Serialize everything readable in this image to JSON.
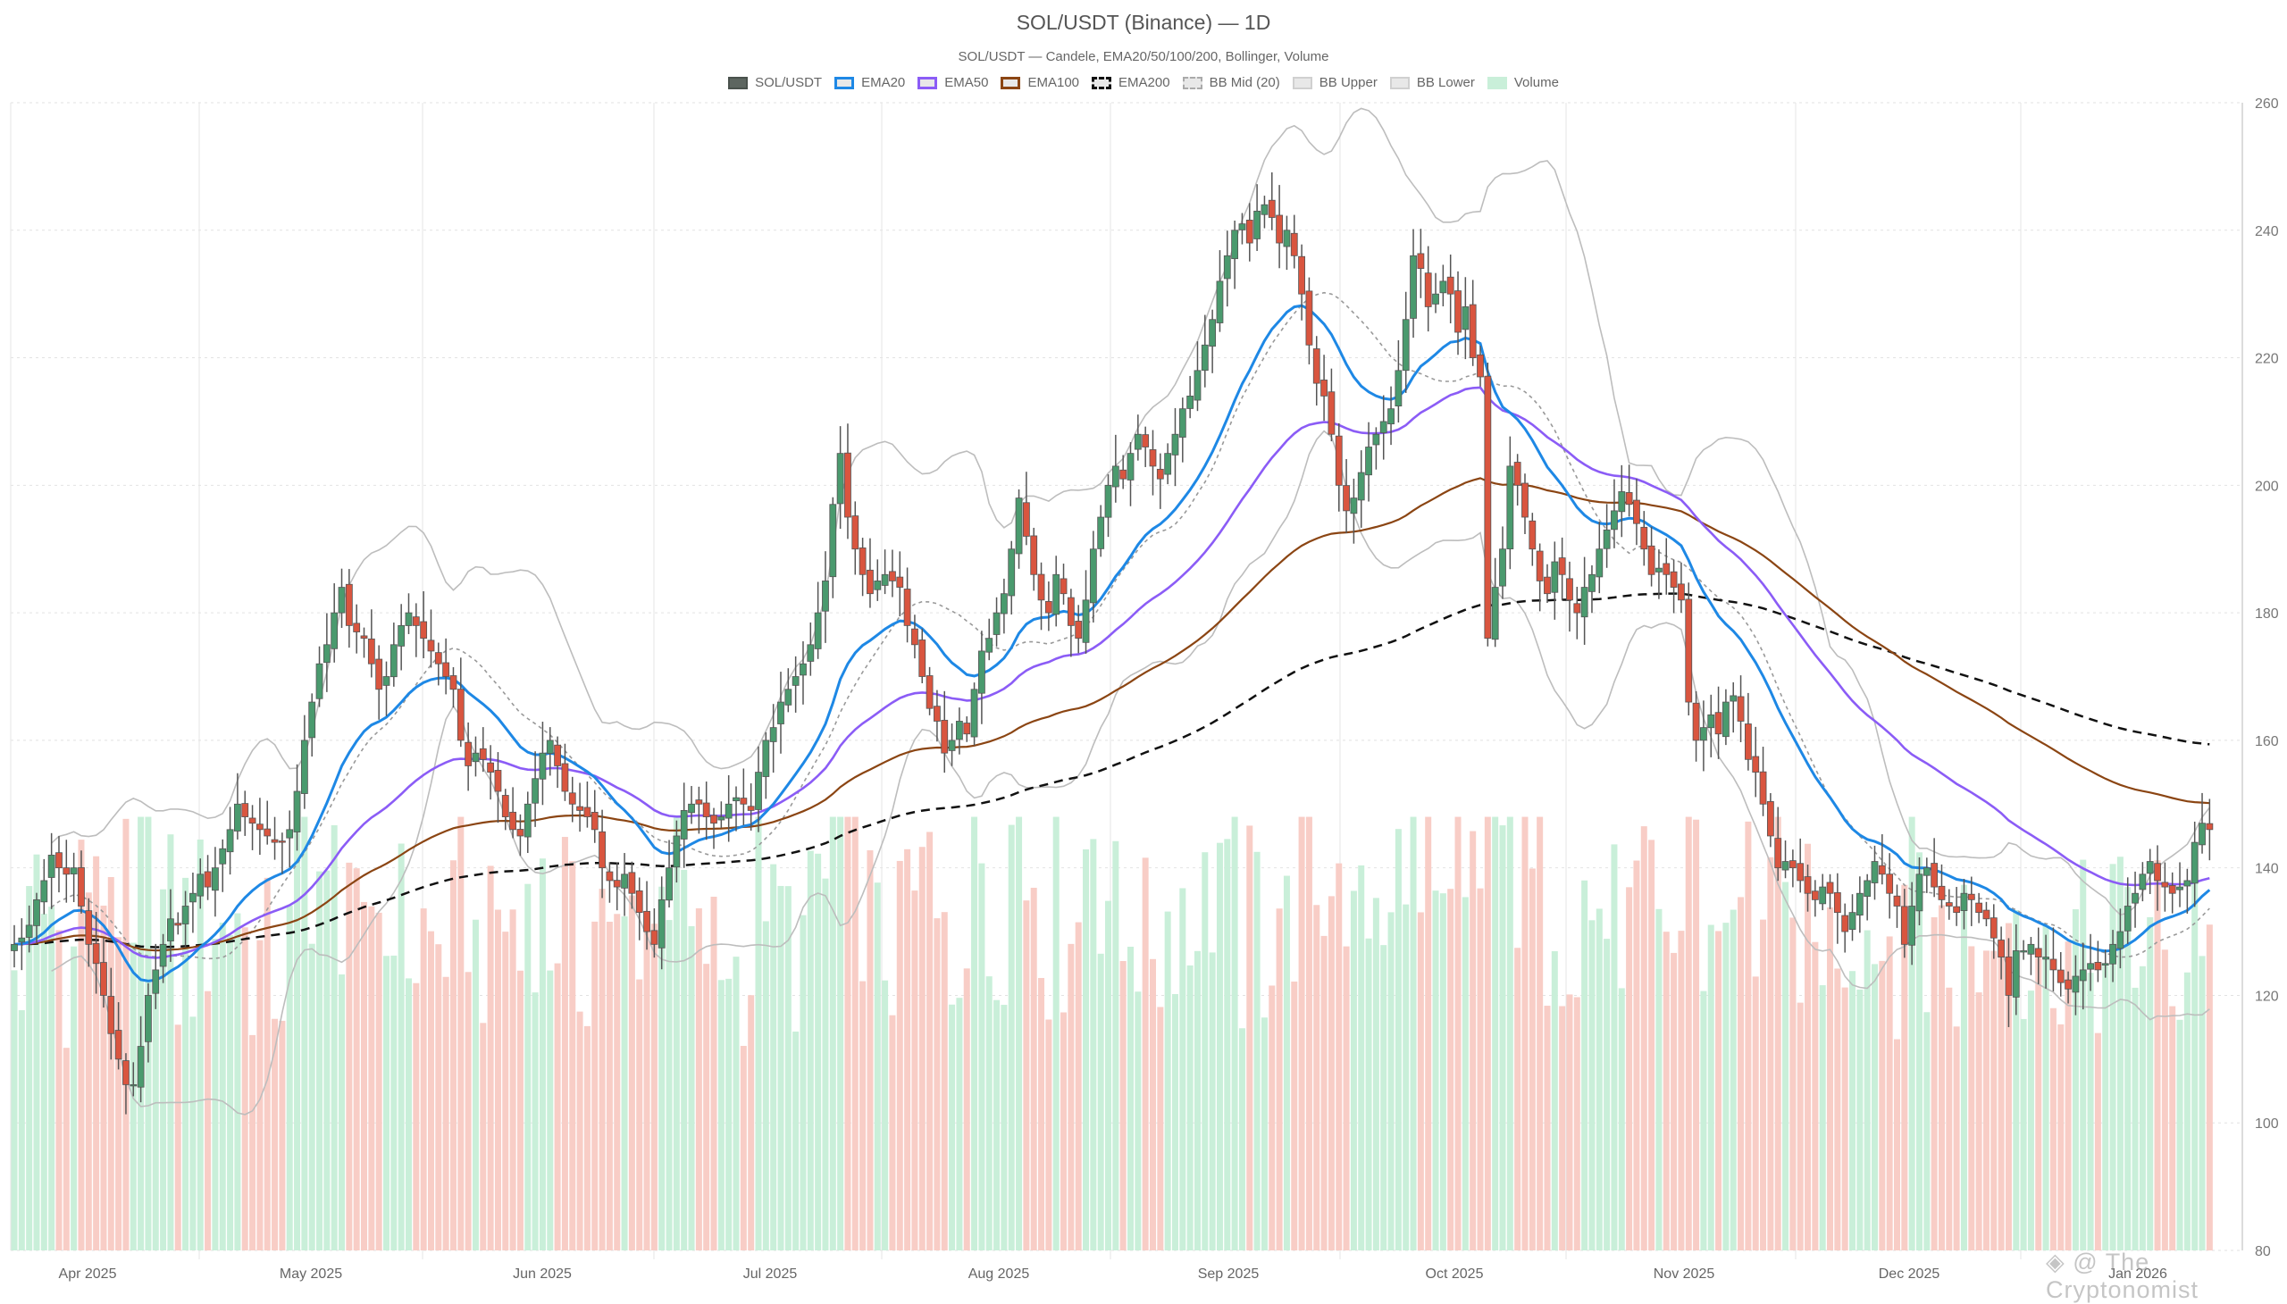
{
  "chart_data": {
    "type": "candlestick",
    "title": "SOL/USDT (Binance) — 1D",
    "subtitle": "SOL/USDT — Candele, EMA20/50/100/200, Bollinger, Volume",
    "xlabel": "",
    "ylabel": "",
    "ylim": [
      80,
      260
    ],
    "yticks": [
      80,
      100,
      120,
      140,
      160,
      180,
      200,
      220,
      240,
      260
    ],
    "y_axis_position": "right",
    "grid": true,
    "legend_position": "top",
    "x_tick_labels": [
      "Apr 2025",
      "May 2025",
      "Jun 2025",
      "Jul 2025",
      "Aug 2025",
      "Sep 2025",
      "Oct 2025",
      "Nov 2025",
      "Dec 2025",
      "Jan 2026"
    ],
    "start_date": "2025-03-22",
    "series_info": [
      {
        "name": "SOL/USDT",
        "color": "#4a9a6e",
        "kind": "candles"
      },
      {
        "name": "EMA20",
        "color": "#1e88e5",
        "kind": "line",
        "period": 20
      },
      {
        "name": "EMA50",
        "color": "#8b5cf6",
        "kind": "line",
        "period": 50
      },
      {
        "name": "EMA100",
        "color": "#8b4513",
        "kind": "line",
        "period": 100
      },
      {
        "name": "EMA200",
        "color": "#111111",
        "kind": "dashed",
        "period": 200
      },
      {
        "name": "BB Mid (20)",
        "color": "#999999",
        "kind": "dotted"
      },
      {
        "name": "BB Upper",
        "color": "#bbbbbb",
        "kind": "line"
      },
      {
        "name": "BB Lower",
        "color": "#bbbbbb",
        "kind": "line"
      },
      {
        "name": "Volume",
        "color": "#c9efd9",
        "kind": "bars"
      }
    ],
    "closes": [
      128,
      129,
      131,
      135,
      138,
      142,
      140,
      139,
      140,
      134,
      128,
      125,
      120,
      114,
      110,
      106,
      106,
      112,
      120,
      124,
      128,
      132,
      131,
      134,
      136,
      139,
      137,
      140,
      143,
      146,
      150,
      148,
      147,
      146,
      145,
      144,
      144,
      146,
      152,
      160,
      166,
      172,
      175,
      180,
      184,
      178,
      177,
      176,
      172,
      168,
      170,
      175,
      178,
      180,
      178,
      176,
      174,
      172,
      170,
      168,
      160,
      156,
      158,
      157,
      155,
      152,
      148,
      146,
      145,
      150,
      154,
      158,
      160,
      156,
      152,
      150,
      149,
      148,
      146,
      140,
      138,
      137,
      139,
      136,
      133,
      130,
      128,
      135,
      140,
      145,
      149,
      150,
      150,
      148,
      147,
      148,
      150,
      151,
      150,
      149,
      155,
      160,
      162,
      166,
      168,
      170,
      172,
      175,
      180,
      185,
      197,
      205,
      195,
      190,
      186,
      183,
      185,
      186,
      185,
      184,
      178,
      175,
      170,
      165,
      163,
      158,
      160,
      163,
      161,
      168,
      174,
      176,
      180,
      183,
      190,
      198,
      192,
      186,
      182,
      180,
      186,
      183,
      178,
      176,
      182,
      190,
      195,
      200,
      203,
      201,
      205,
      208,
      206,
      203,
      201,
      205,
      208,
      212,
      214,
      218,
      222,
      226,
      232,
      236,
      240,
      241,
      238,
      243,
      244,
      242,
      238,
      240,
      236,
      230,
      222,
      216,
      214,
      208,
      200,
      196,
      198,
      202,
      206,
      208,
      210,
      212,
      218,
      226,
      236,
      234,
      228,
      230,
      232,
      230,
      224,
      228,
      220,
      217,
      176,
      184,
      190,
      203,
      200,
      195,
      190,
      185,
      183,
      188,
      186,
      182,
      180,
      184,
      186,
      190,
      193,
      196,
      199,
      197,
      194,
      190,
      186,
      187,
      186,
      184,
      182,
      166,
      160,
      162,
      164,
      161,
      166,
      167,
      163,
      157,
      155,
      150,
      145,
      140,
      141,
      140,
      138,
      136,
      135,
      137,
      136,
      133,
      130,
      133,
      136,
      138,
      141,
      139,
      136,
      134,
      128,
      134,
      139,
      140,
      137,
      135,
      134,
      133,
      136,
      135,
      133,
      132,
      129,
      126,
      120,
      127,
      127,
      128,
      126,
      126,
      124,
      122,
      121,
      123,
      124,
      125,
      124,
      125,
      128,
      130,
      134,
      136,
      139,
      141,
      138,
      137,
      136,
      137,
      138,
      144,
      147,
      146
    ]
  },
  "header": {
    "title": "SOL/USDT (Binance) — 1D",
    "subtitle": "SOL/USDT — Candele, EMA20/50/100/200, Bollinger, Volume"
  },
  "legend": [
    {
      "label": "SOL/USDT"
    },
    {
      "label": "EMA20"
    },
    {
      "label": "EMA50"
    },
    {
      "label": "EMA100"
    },
    {
      "label": "EMA200"
    },
    {
      "label": "BB Mid (20)"
    },
    {
      "label": "BB Upper"
    },
    {
      "label": "BB Lower"
    },
    {
      "label": "Volume"
    }
  ],
  "colors": {
    "up": "#4a9a6e",
    "down": "#d9553f",
    "wick": "#555555",
    "vol_up": "#c9efd9",
    "vol_down": "#f8cdc6",
    "grid": "#e4e4e4",
    "ema20": "#1e88e5",
    "ema50": "#8b5cf6",
    "ema100": "#8b4513",
    "ema200": "#111111",
    "bb": "#bdbdbd",
    "bbmid": "#999999"
  },
  "watermark": "◈ @ The Cryptonomist"
}
